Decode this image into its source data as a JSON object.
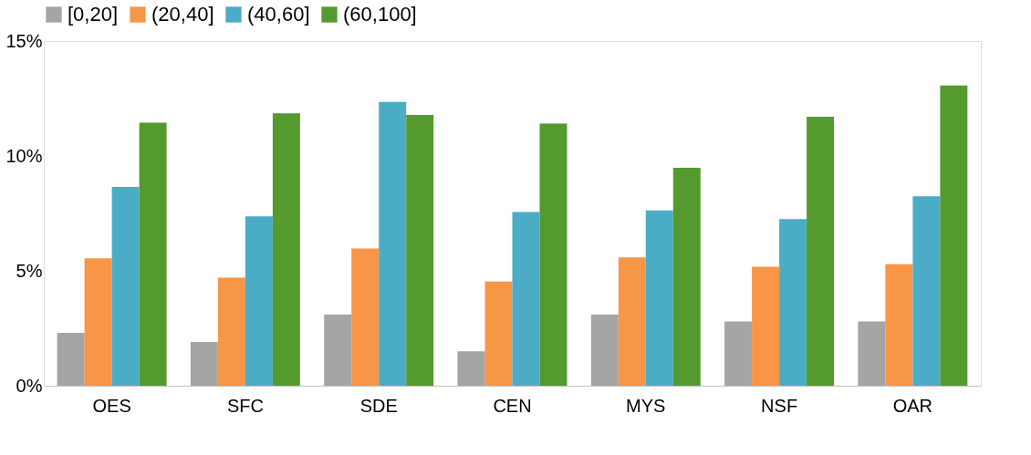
{
  "chart_data": {
    "type": "bar",
    "categories": [
      "OES",
      "SFC",
      "SDE",
      "CEN",
      "MYS",
      "NSF",
      "OAR"
    ],
    "series": [
      {
        "name": "[0,20]",
        "color": "#a5a5a5",
        "values": [
          2.3,
          1.9,
          3.1,
          1.5,
          3.1,
          2.8,
          2.8
        ]
      },
      {
        "name": "(20,40]",
        "color": "#f79646",
        "values": [
          5.55,
          4.7,
          5.97,
          4.53,
          5.59,
          5.18,
          5.29
        ]
      },
      {
        "name": "(40,60]",
        "color": "#4bacc6",
        "values": [
          8.65,
          7.37,
          12.35,
          7.56,
          7.63,
          7.25,
          8.24
        ]
      },
      {
        "name": "(60,100]",
        "color": "#559a2f",
        "values": [
          11.45,
          11.86,
          11.79,
          11.41,
          9.48,
          11.71,
          13.07
        ]
      }
    ],
    "ylim": [
      0,
      15
    ],
    "yticks": [
      {
        "value": 0,
        "label": "0%"
      },
      {
        "value": 5,
        "label": "5%"
      },
      {
        "value": 10,
        "label": "10%"
      },
      {
        "value": 15,
        "label": "15%"
      }
    ],
    "grid": false,
    "legend": "top"
  }
}
